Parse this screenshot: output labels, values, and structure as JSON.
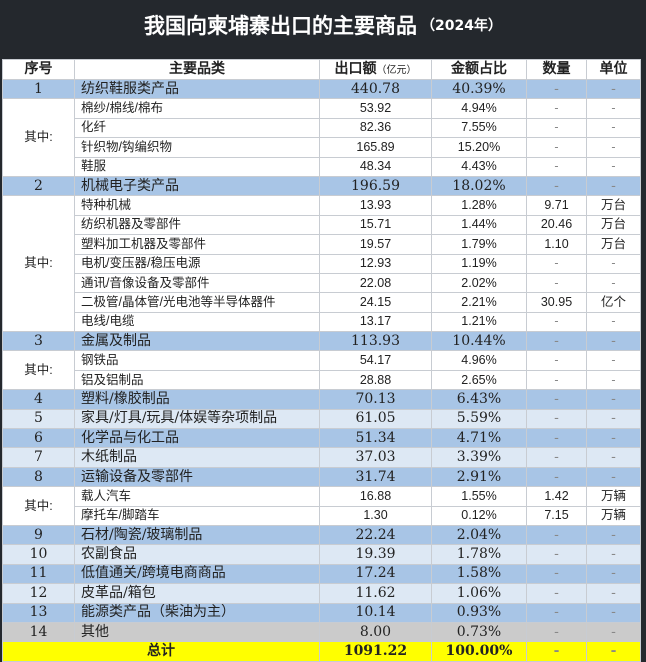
{
  "title": {
    "main": "我国向柬埔寨出口的主要商品",
    "year": "（2024年）"
  },
  "header": {
    "seq": "序号",
    "category": "主要品类",
    "amount": "出口额",
    "amount_unit": "（亿元）",
    "share": "金额占比",
    "qty": "数量",
    "unit": "单位"
  },
  "group_label": "其中:",
  "colors": {
    "main_row": "#a8c5e6",
    "alt_row": "#dde8f4",
    "other_row": "#cbcbcb",
    "total_row": "#ffff00",
    "title_bg": "#24282d"
  },
  "rows": [
    {
      "type": "main",
      "seq": "1",
      "name": "纺织鞋服类产品",
      "amount": "440.78",
      "share": "40.39%",
      "qty": "-",
      "unit": "-"
    },
    {
      "type": "sub",
      "group": "start",
      "span": 4,
      "name": "棉纱/棉线/棉布",
      "amount": "53.92",
      "share": "4.94%",
      "qty": "-",
      "unit": "-"
    },
    {
      "type": "sub",
      "name": "化纤",
      "amount": "82.36",
      "share": "7.55%",
      "qty": "-",
      "unit": "-"
    },
    {
      "type": "sub",
      "name": "针织物/钩编织物",
      "amount": "165.89",
      "share": "15.20%",
      "qty": "-",
      "unit": "-"
    },
    {
      "type": "sub",
      "name": "鞋服",
      "amount": "48.34",
      "share": "4.43%",
      "qty": "-",
      "unit": "-"
    },
    {
      "type": "main",
      "seq": "2",
      "name": "机械电子类产品",
      "amount": "196.59",
      "share": "18.02%",
      "qty": "-",
      "unit": "-"
    },
    {
      "type": "sub",
      "group": "start",
      "span": 7,
      "name": "特种机械",
      "amount": "13.93",
      "share": "1.28%",
      "qty": "9.71",
      "unit": "万台"
    },
    {
      "type": "sub",
      "name": "纺织机器及零部件",
      "amount": "15.71",
      "share": "1.44%",
      "qty": "20.46",
      "unit": "万台"
    },
    {
      "type": "sub",
      "name": "塑料加工机器及零部件",
      "amount": "19.57",
      "share": "1.79%",
      "qty": "1.10",
      "unit": "万台"
    },
    {
      "type": "sub",
      "name": "电机/变压器/稳压电源",
      "amount": "12.93",
      "share": "1.19%",
      "qty": "-",
      "unit": "-"
    },
    {
      "type": "sub",
      "name": "通讯/音像设备及零部件",
      "amount": "22.08",
      "share": "2.02%",
      "qty": "-",
      "unit": "-"
    },
    {
      "type": "sub",
      "name": "二极管/晶体管/光电池等半导体器件",
      "amount": "24.15",
      "share": "2.21%",
      "qty": "30.95",
      "unit": "亿个"
    },
    {
      "type": "sub",
      "name": "电线/电缆",
      "amount": "13.17",
      "share": "1.21%",
      "qty": "-",
      "unit": "-"
    },
    {
      "type": "main",
      "seq": "3",
      "name": "金属及制品",
      "amount": "113.93",
      "share": "10.44%",
      "qty": "-",
      "unit": "-"
    },
    {
      "type": "sub",
      "group": "start",
      "span": 2,
      "name": "钢铁品",
      "amount": "54.17",
      "share": "4.96%",
      "qty": "-",
      "unit": "-"
    },
    {
      "type": "sub",
      "name": "铝及铝制品",
      "amount": "28.88",
      "share": "2.65%",
      "qty": "-",
      "unit": "-"
    },
    {
      "type": "main",
      "seq": "4",
      "name": "塑料/橡胶制品",
      "amount": "70.13",
      "share": "6.43%",
      "qty": "-",
      "unit": "-"
    },
    {
      "type": "alt",
      "seq": "5",
      "name": "家具/灯具/玩具/体娱等杂项制品",
      "amount": "61.05",
      "share": "5.59%",
      "qty": "-",
      "unit": "-"
    },
    {
      "type": "main",
      "seq": "6",
      "name": "化学品与化工品",
      "amount": "51.34",
      "share": "4.71%",
      "qty": "-",
      "unit": "-"
    },
    {
      "type": "alt",
      "seq": "7",
      "name": "木纸制品",
      "amount": "37.03",
      "share": "3.39%",
      "qty": "-",
      "unit": "-"
    },
    {
      "type": "main",
      "seq": "8",
      "name": "运输设备及零部件",
      "amount": "31.74",
      "share": "2.91%",
      "qty": "-",
      "unit": "-"
    },
    {
      "type": "sub",
      "group": "start",
      "span": 2,
      "name": "载人汽车",
      "amount": "16.88",
      "share": "1.55%",
      "qty": "1.42",
      "unit": "万辆"
    },
    {
      "type": "sub",
      "name": "摩托车/脚踏车",
      "amount": "1.30",
      "share": "0.12%",
      "qty": "7.15",
      "unit": "万辆"
    },
    {
      "type": "main",
      "seq": "9",
      "name": "石材/陶瓷/玻璃制品",
      "amount": "22.24",
      "share": "2.04%",
      "qty": "-",
      "unit": "-"
    },
    {
      "type": "alt",
      "seq": "10",
      "name": "农副食品",
      "amount": "19.39",
      "share": "1.78%",
      "qty": "-",
      "unit": "-"
    },
    {
      "type": "main",
      "seq": "11",
      "name": "低值通关/跨境电商商品",
      "amount": "17.24",
      "share": "1.58%",
      "qty": "-",
      "unit": "-"
    },
    {
      "type": "alt",
      "seq": "12",
      "name": "皮革品/箱包",
      "amount": "11.62",
      "share": "1.06%",
      "qty": "-",
      "unit": "-"
    },
    {
      "type": "main",
      "seq": "13",
      "name": "能源类产品（柴油为主）",
      "amount": "10.14",
      "share": "0.93%",
      "qty": "-",
      "unit": "-"
    },
    {
      "type": "other",
      "seq": "14",
      "name": "其他",
      "amount": "8.00",
      "share": "0.73%",
      "qty": "-",
      "unit": "-"
    }
  ],
  "total": {
    "label": "总计",
    "amount": "1091.22",
    "share": "100.00%",
    "qty": "-",
    "unit": "-"
  }
}
